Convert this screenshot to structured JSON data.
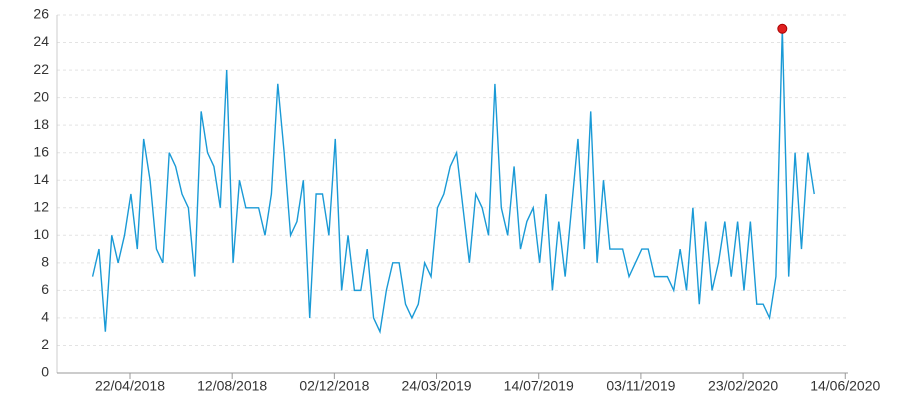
{
  "chart_data": {
    "type": "line",
    "x": [
      "2018-03-12",
      "2018-03-19",
      "2018-03-26",
      "2018-04-02",
      "2018-04-09",
      "2018-04-16",
      "2018-04-23",
      "2018-04-30",
      "2018-05-07",
      "2018-05-14",
      "2018-05-21",
      "2018-05-28",
      "2018-06-04",
      "2018-06-11",
      "2018-06-18",
      "2018-06-25",
      "2018-07-02",
      "2018-07-09",
      "2018-07-16",
      "2018-07-23",
      "2018-07-30",
      "2018-08-06",
      "2018-08-13",
      "2018-08-20",
      "2018-08-27",
      "2018-09-03",
      "2018-09-10",
      "2018-09-17",
      "2018-09-24",
      "2018-10-01",
      "2018-10-08",
      "2018-10-15",
      "2018-10-22",
      "2018-10-29",
      "2018-11-05",
      "2018-11-12",
      "2018-11-19",
      "2018-11-26",
      "2018-12-03",
      "2018-12-10",
      "2018-12-17",
      "2018-12-24",
      "2018-12-31",
      "2019-01-07",
      "2019-01-14",
      "2019-01-21",
      "2019-01-28",
      "2019-02-04",
      "2019-02-11",
      "2019-02-18",
      "2019-02-25",
      "2019-03-04",
      "2019-03-11",
      "2019-03-18",
      "2019-03-25",
      "2019-04-01",
      "2019-04-08",
      "2019-04-15",
      "2019-04-22",
      "2019-04-29",
      "2019-05-06",
      "2019-05-13",
      "2019-05-20",
      "2019-05-27",
      "2019-06-03",
      "2019-06-10",
      "2019-06-17",
      "2019-06-24",
      "2019-07-01",
      "2019-07-08",
      "2019-07-15",
      "2019-07-22",
      "2019-07-29",
      "2019-08-05",
      "2019-08-12",
      "2019-08-19",
      "2019-08-26",
      "2019-09-02",
      "2019-09-09",
      "2019-09-16",
      "2019-09-23",
      "2019-09-30",
      "2019-10-07",
      "2019-10-14",
      "2019-10-21",
      "2019-10-28",
      "2019-11-04",
      "2019-11-11",
      "2019-11-18",
      "2019-11-25",
      "2019-12-02",
      "2019-12-09",
      "2019-12-16",
      "2019-12-23",
      "2019-12-30",
      "2020-01-06",
      "2020-01-13",
      "2020-01-20",
      "2020-01-27",
      "2020-02-03",
      "2020-02-10",
      "2020-02-17",
      "2020-02-24",
      "2020-03-02",
      "2020-03-09",
      "2020-03-16",
      "2020-03-23",
      "2020-03-30",
      "2020-04-06",
      "2020-04-13",
      "2020-04-20",
      "2020-04-27",
      "2020-05-04",
      "2020-05-11"
    ],
    "series": [
      {
        "color": "#1a9ad6",
        "values": [
          7,
          9,
          3,
          10,
          8,
          10,
          13,
          9,
          17,
          14,
          9,
          8,
          16,
          15,
          13,
          12,
          7,
          19,
          16,
          15,
          12,
          22,
          8,
          14,
          12,
          12,
          12,
          10,
          13,
          21,
          16,
          10,
          11,
          14,
          4,
          13,
          13,
          10,
          17,
          6,
          10,
          6,
          6,
          9,
          4,
          3,
          6,
          8,
          8,
          5,
          4,
          5,
          8,
          7,
          12,
          13,
          15,
          16,
          12,
          8,
          13,
          12,
          10,
          21,
          12,
          10,
          15,
          9,
          11,
          12,
          8,
          13,
          6,
          11,
          7,
          12,
          17,
          9,
          19,
          8,
          14,
          9,
          9,
          9,
          7,
          8,
          9,
          9,
          7,
          7,
          7,
          6,
          9,
          6,
          12,
          5,
          11,
          6,
          8,
          11,
          7,
          11,
          6,
          11,
          5,
          5,
          4,
          7,
          25,
          7,
          16,
          9,
          16,
          13
        ]
      }
    ],
    "max_marker_color": "#e02020",
    "xlim": [
      "2018-02-01",
      "2020-06-17"
    ],
    "xticks": [
      {
        "value": "2018-04-22",
        "label": "22/04/2018"
      },
      {
        "value": "2018-08-12",
        "label": "12/08/2018"
      },
      {
        "value": "2018-12-02",
        "label": "02/12/2018"
      },
      {
        "value": "2019-03-24",
        "label": "24/03/2019"
      },
      {
        "value": "2019-07-14",
        "label": "14/07/2019"
      },
      {
        "value": "2019-11-03",
        "label": "03/11/2019"
      },
      {
        "value": "2020-02-23",
        "label": "23/02/2020"
      },
      {
        "value": "2020-06-14",
        "label": "14/06/2020"
      }
    ],
    "ylim": [
      0,
      26
    ],
    "yticks": [
      0,
      2,
      4,
      6,
      8,
      10,
      12,
      14,
      16,
      18,
      20,
      22,
      24,
      26
    ],
    "grid": true
  }
}
